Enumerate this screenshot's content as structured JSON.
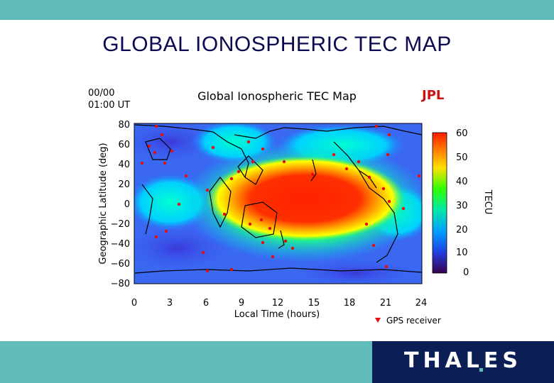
{
  "slide": {
    "title": "GLOBAL IONOSPHERIC TEC MAP",
    "logo_text": "THALES"
  },
  "map": {
    "date_label": "00/00",
    "time_label": "01:00 UT",
    "title": "Global Ionospheric TEC Map",
    "source_label": "JPL",
    "xlabel": "Local Time (hours)",
    "ylabel": "Geographic Latitude (deg)",
    "xticks": [
      "0",
      "3",
      "6",
      "9",
      "12",
      "15",
      "18",
      "21",
      "24"
    ],
    "yticks": [
      "80",
      "60",
      "40",
      "20",
      "0",
      "−20",
      "−40",
      "−60",
      "−80"
    ],
    "colorbar_label": "TECU",
    "colorbar_ticks": [
      "60",
      "50",
      "40",
      "30",
      "20",
      "10",
      "0"
    ],
    "legend_label": "GPS receiver",
    "colors": {
      "receiver": "#e01010",
      "coast": "#000000"
    }
  }
}
